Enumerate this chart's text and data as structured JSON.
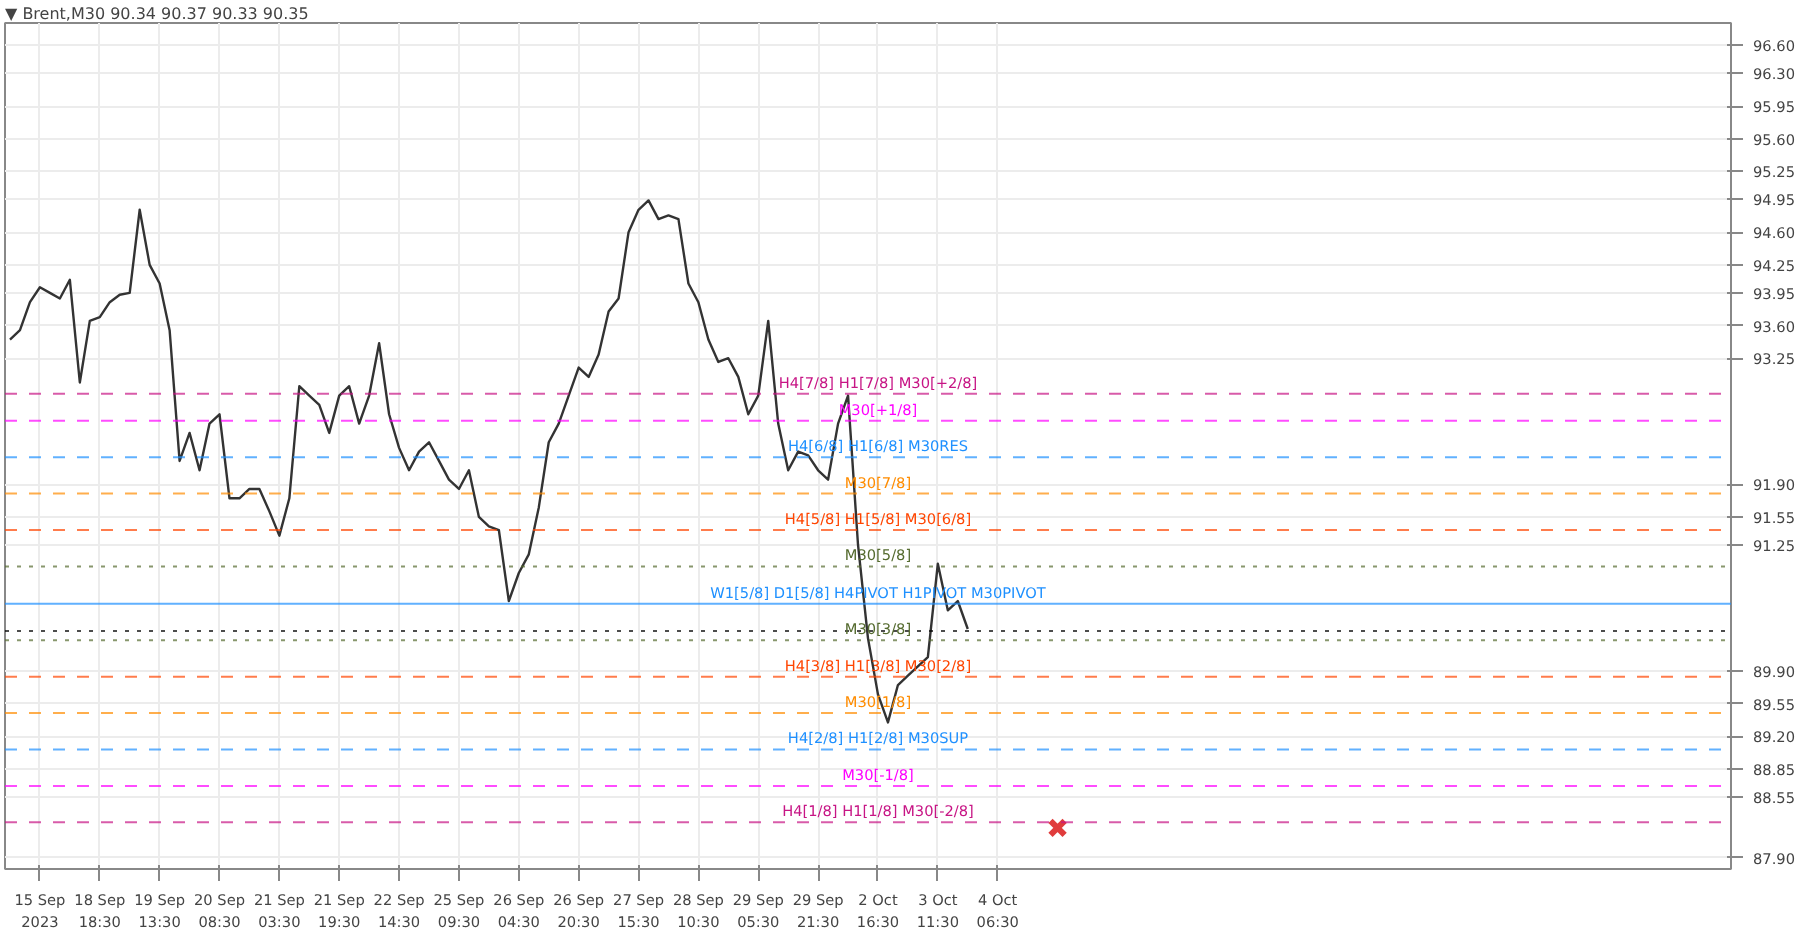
{
  "chart_data": {
    "type": "line",
    "title": "▼ Brent,M30  90.34 90.37 90.33 90.35",
    "categories": [
      null,
      null,
      null,
      "15 Sep 2023",
      null,
      null,
      null,
      null,
      null,
      "18 Sep 18:30",
      null,
      null,
      null,
      null,
      null,
      "19 Sep 13:30",
      null,
      null,
      null,
      null,
      null,
      "20 Sep 08:30",
      null,
      null,
      null,
      null,
      null,
      "21 Sep 03:30",
      null,
      null,
      null,
      null,
      null,
      "21 Sep 19:30",
      null,
      null,
      null,
      null,
      null,
      "22 Sep 14:30",
      null,
      null,
      null,
      null,
      null,
      "25 Sep 09:30",
      null,
      null,
      null,
      null,
      null,
      "26 Sep 04:30",
      null,
      null,
      null,
      null,
      null,
      "26 Sep 20:30",
      null,
      null,
      null,
      null,
      null,
      "27 Sep 15:30",
      null,
      null,
      null,
      null,
      null,
      "28 Sep 10:30",
      null,
      null,
      null,
      null,
      null,
      "29 Sep 05:30",
      null,
      null,
      null,
      null,
      null,
      "29 Sep 21:30",
      null,
      null,
      null,
      null,
      null,
      "2 Oct 16:30",
      null,
      null,
      null,
      null,
      null,
      "3 Oct 11:30",
      null,
      null,
      null,
      null,
      null,
      "4 Oct 06:30",
      null,
      null,
      null,
      null,
      null,
      null,
      null,
      null,
      null,
      null,
      null,
      null,
      null,
      null,
      null,
      null,
      null,
      null,
      null,
      null,
      null,
      null,
      null,
      null,
      null,
      null,
      null,
      null,
      null,
      null,
      null,
      null,
      null,
      null,
      null,
      null,
      null,
      null,
      null,
      null,
      null,
      null,
      null,
      null,
      null,
      null,
      null,
      null,
      null,
      null,
      null,
      null,
      null,
      null,
      null,
      null,
      null,
      null,
      null,
      null,
      null,
      null,
      null,
      null,
      null,
      null,
      null,
      null,
      null,
      null,
      null,
      null,
      null
    ],
    "ylim": [
      87.78,
      96.84
    ],
    "yticks": [
      {
        "value": 96.6,
        "label": "96.60"
      },
      {
        "value": 96.3,
        "label": "96.30"
      },
      95.95,
      {
        "value": 95.6,
        "label": "95.60"
      },
      95.25,
      94.95,
      {
        "value": 94.6,
        "label": "94.60"
      },
      94.25,
      93.95,
      {
        "value": 93.6,
        "label": "93.60"
      },
      93.25,
      {
        "value": 91.9,
        "label": "91.90"
      },
      91.55,
      91.25,
      {
        "value": 89.9,
        "label": "89.90"
      },
      89.55,
      {
        "value": 89.2,
        "label": "89.20"
      },
      88.85,
      88.55,
      {
        "value": 87.9,
        "label": "87.90"
      }
    ],
    "grid": true,
    "marker": "none",
    "line_style": "solid",
    "series": [
      {
        "color": "#333333",
        "values": [
          93.45,
          93.55,
          93.85,
          94.01,
          93.95,
          93.89,
          94.09,
          92.99,
          93.65,
          93.69,
          93.85,
          93.93,
          93.95,
          94.84,
          94.25,
          94.05,
          93.55,
          92.15,
          92.45,
          92.05,
          92.55,
          92.65,
          91.75,
          91.75,
          91.85,
          91.85,
          91.61,
          91.35,
          91.75,
          92.95,
          92.85,
          92.75,
          92.45,
          92.85,
          92.95,
          92.55,
          92.85,
          93.41,
          92.65,
          92.29,
          92.05,
          92.25,
          92.35,
          92.15,
          91.95,
          91.85,
          92.05,
          91.55,
          91.45,
          91.41,
          90.65,
          90.95,
          91.15,
          91.65,
          92.35,
          92.55,
          92.85,
          93.15,
          93.05,
          93.29,
          93.75,
          93.89,
          94.6,
          94.84,
          94.94,
          94.74,
          94.78,
          94.74,
          94.05,
          93.85,
          93.45,
          93.21,
          93.25,
          93.05,
          92.65,
          92.85,
          93.65,
          92.55,
          92.05,
          92.25,
          92.21,
          92.05,
          91.95,
          92.55,
          92.85,
          91.25,
          90.25,
          89.65,
          89.35,
          89.75,
          89.85,
          89.95,
          90.05,
          91.05,
          90.55,
          90.65,
          90.35,
          null,
          null,
          null,
          null,
          null,
          null,
          null,
          null,
          null,
          null,
          null,
          null,
          null,
          null,
          null,
          null,
          null,
          null,
          null,
          null,
          null,
          null,
          null,
          null,
          null,
          null,
          null,
          null,
          null,
          null,
          null,
          null,
          null,
          null,
          null,
          null,
          null,
          null,
          null,
          null,
          null,
          null,
          null,
          null,
          null,
          null,
          null,
          null,
          null,
          null,
          null,
          null,
          null,
          null,
          null,
          null,
          null,
          null,
          null,
          null,
          null,
          null,
          null,
          null,
          null,
          null,
          null,
          null,
          null,
          null,
          null,
          null,
          null,
          null,
          null,
          null
        ]
      },
      {
        "type": "scatter",
        "marker": "cross",
        "color": "#e03c3c",
        "values": [
          null,
          null,
          null,
          null,
          null,
          null,
          null,
          null,
          null,
          null,
          null,
          null,
          null,
          null,
          null,
          null,
          null,
          null,
          null,
          null,
          null,
          null,
          null,
          null,
          null,
          null,
          null,
          null,
          null,
          null,
          null,
          null,
          null,
          null,
          null,
          null,
          null,
          null,
          null,
          null,
          null,
          null,
          null,
          null,
          null,
          null,
          null,
          null,
          null,
          null,
          null,
          null,
          null,
          null,
          null,
          null,
          null,
          null,
          null,
          null,
          null,
          null,
          null,
          null,
          null,
          null,
          null,
          null,
          null,
          null,
          null,
          null,
          null,
          null,
          null,
          null,
          null,
          null,
          null,
          null,
          null,
          null,
          null,
          null,
          null,
          null,
          null,
          null,
          null,
          null,
          null,
          null,
          null,
          null,
          null,
          null,
          null,
          null,
          null,
          null,
          null,
          null,
          null,
          null,
          null,
          88.22,
          null,
          null,
          null,
          null,
          null,
          null,
          null,
          null,
          null,
          null,
          null,
          null,
          null,
          null,
          null,
          null,
          null,
          null,
          null,
          null,
          null,
          null,
          null,
          null,
          null,
          null,
          null,
          null,
          null,
          null,
          null,
          null,
          null,
          null,
          null,
          null,
          null,
          null,
          null,
          null,
          null,
          null,
          null,
          null,
          null,
          null,
          null,
          null,
          null,
          null,
          null,
          null,
          null,
          null,
          null,
          null,
          null,
          null,
          null,
          null,
          null,
          null,
          null,
          null,
          null,
          null,
          null
        ]
      }
    ],
    "ref_lines": [
      {
        "axis": "y",
        "value": 92.87,
        "label": "H4[7/8] H1[7/8] M30[+2/8]",
        "color": "#c71585",
        "line_style": "dashed"
      },
      {
        "axis": "y",
        "value": 92.58,
        "label": "M30[+1/8]",
        "color": "#ff00ff",
        "line_style": "dashed"
      },
      {
        "axis": "y",
        "value": 92.19,
        "label": "H4[6/8] H1[6/8] M30RES",
        "color": "#1e90ff",
        "line_style": "dashed"
      },
      {
        "axis": "y",
        "value": 91.8,
        "label": "M30[7/8]",
        "color": "#ff8c00",
        "line_style": "dashed"
      },
      {
        "axis": "y",
        "value": 91.41,
        "label": "H4[5/8] H1[5/8] M30[6/8]",
        "color": "#ff4500",
        "line_style": "dashed"
      },
      {
        "axis": "y",
        "value": 91.02,
        "label": "M30[5/8]",
        "color": "#556b2f",
        "line_style": "dotted"
      },
      {
        "axis": "y",
        "value": 90.62,
        "label": "W1[5/8] D1[5/8] H4PIVOT H1PIVOT M30PIVOT",
        "color": "#1e90ff",
        "line_style": "solid"
      },
      {
        "axis": "y",
        "value": 90.33,
        "label": null,
        "color": "#000000",
        "line_style": "dotted"
      },
      {
        "axis": "y",
        "value": 90.23,
        "label": "M30[3/8]",
        "color": "#556b2f",
        "line_style": "dotted"
      },
      {
        "axis": "y",
        "value": 89.84,
        "label": "H4[3/8] H1[3/8] M30[2/8]",
        "color": "#ff4500",
        "line_style": "dashed"
      },
      {
        "axis": "y",
        "value": 89.45,
        "label": "M30[1/8]",
        "color": "#ff8c00",
        "line_style": "dashed"
      },
      {
        "axis": "y",
        "value": 89.06,
        "label": "H4[2/8] H1[2/8] M30SUP",
        "color": "#1e90ff",
        "line_style": "dashed"
      },
      {
        "axis": "y",
        "value": 88.67,
        "label": "M30[-1/8]",
        "color": "#ff00ff",
        "line_style": "dashed"
      },
      {
        "axis": "y",
        "value": 88.28,
        "label": "H4[1/8] H1[1/8] M30[-2/8]",
        "color": "#c71585",
        "line_style": "dashed"
      }
    ]
  }
}
